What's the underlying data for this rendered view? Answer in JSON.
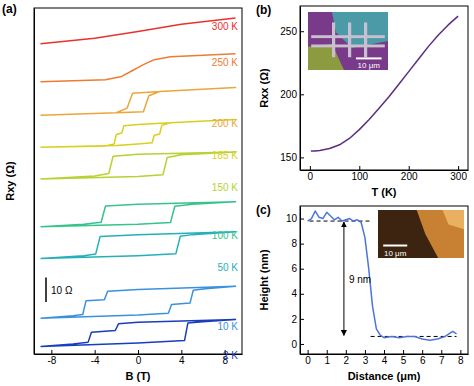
{
  "chart_data": [
    {
      "type": "line",
      "panel_label": "(a)",
      "x_label": "B (T)",
      "y_label": "Rxy (Ω)",
      "xlim": [
        -9.6,
        9.6
      ],
      "xticks": [
        -8,
        -4,
        0,
        4,
        8
      ],
      "ylim": [
        0,
        140
      ],
      "tick_labels": "x",
      "scale_bar": {
        "value": 10,
        "label": "10 Ω"
      },
      "series": [
        {
          "name": "300 K",
          "color": "#e8322e",
          "x": [
            -9,
            -4,
            0,
            4,
            9
          ],
          "values": [
            125.5,
            127.8,
            130.5,
            133.4,
            136.0
          ]
        },
        {
          "name": "250 K",
          "color": "#ef7a30",
          "x": [
            -9,
            -3,
            -1.5,
            -0.5,
            0,
            0.5,
            1.5,
            3,
            9
          ],
          "values": [
            110.2,
            111.0,
            112.3,
            114.7,
            115.9,
            117.1,
            119.1,
            120.3,
            121.5
          ]
        },
        {
          "name": "200 K",
          "color": "#eaa63a",
          "x": [
            -9,
            -2,
            0.5,
            1.0,
            2,
            9,
            2,
            -0.5,
            -1.0,
            -2,
            -9
          ],
          "values": [
            96.6,
            97.6,
            98.0,
            104.5,
            106.2,
            107.8,
            106.2,
            105.5,
            99.5,
            97.6,
            96.6
          ]
        },
        {
          "name": "185 K",
          "color": "#d8cf1e",
          "x": [
            -9,
            -2,
            0,
            1.3,
            1.5,
            2.0,
            2.2,
            3,
            9,
            3,
            0,
            -1.3,
            -1.5,
            -2.0,
            -2.2,
            -3,
            -9
          ],
          "values": [
            83.7,
            84.4,
            85.0,
            85.5,
            88.5,
            89.0,
            92.5,
            93.6,
            94.9,
            93.6,
            92.9,
            92.4,
            89.4,
            88.8,
            85.0,
            84.2,
            83.7
          ]
        },
        {
          "name": "150 K",
          "color": "#b5d332",
          "x": [
            -9,
            0,
            2.3,
            2.7,
            4,
            9,
            0,
            -2.3,
            -2.7,
            -4,
            -9
          ],
          "values": [
            70.8,
            71.8,
            72.5,
            79.5,
            80.6,
            81.7,
            80.8,
            80.0,
            73.0,
            72.0,
            70.8
          ]
        },
        {
          "name": "100 K",
          "color": "#36c48c",
          "x": [
            -9,
            0,
            3.0,
            3.4,
            5,
            9,
            0,
            -3.0,
            -3.4,
            -5,
            -9
          ],
          "values": [
            51.5,
            52.5,
            53.2,
            59.8,
            60.6,
            61.6,
            60.6,
            59.9,
            53.3,
            52.5,
            51.5
          ]
        },
        {
          "name": "50 K",
          "color": "#24b0b8",
          "x": [
            -9,
            0,
            3.5,
            3.9,
            5,
            9,
            0,
            -3.5,
            -3.9,
            -5,
            -9
          ],
          "values": [
            38.6,
            39.8,
            40.6,
            47.6,
            48.3,
            49.5,
            48.3,
            47.5,
            40.5,
            39.8,
            38.6
          ]
        },
        {
          "name": "10 K",
          "color": "#3a92de",
          "x": [
            -9,
            0,
            2.8,
            3.1,
            4.8,
            5.1,
            6,
            9,
            0,
            -2.8,
            -3.1,
            -4.8,
            -5.1,
            -6,
            -9
          ],
          "values": [
            14.5,
            15.8,
            16.5,
            20.0,
            20.6,
            25.8,
            26.3,
            27.4,
            26.1,
            25.4,
            22.0,
            21.5,
            16.0,
            15.5,
            14.5
          ]
        },
        {
          "name": "2 K",
          "color": "#1a3dbf",
          "x": [
            -9,
            0,
            4.3,
            4.6,
            6,
            9,
            0,
            -1.8,
            -2.1,
            -4.3,
            -4.6,
            -6,
            -9
          ],
          "values": [
            3.0,
            4.5,
            5.5,
            12.5,
            13.0,
            14.0,
            12.8,
            12.2,
            9.5,
            8.8,
            4.8,
            4.0,
            3.0
          ]
        }
      ]
    },
    {
      "type": "line",
      "panel_label": "(b)",
      "x_label": "T (K)",
      "y_label": "Rxx (Ω)",
      "xlim": [
        -20,
        320
      ],
      "xticks": [
        0,
        100,
        200,
        300
      ],
      "ylim": [
        140,
        270
      ],
      "yticks": [
        150,
        200,
        250
      ],
      "x": [
        2,
        10,
        20,
        40,
        60,
        80,
        100,
        120,
        140,
        160,
        180,
        200,
        220,
        240,
        260,
        280,
        300
      ],
      "series": [
        {
          "color": "#5a2d82",
          "values": [
            155,
            155,
            155.5,
            157,
            160,
            165,
            172,
            180,
            189,
            198,
            208,
            218,
            228,
            238,
            247,
            255,
            262
          ]
        }
      ],
      "inset": {
        "scale_label": "10 μm"
      }
    },
    {
      "type": "line",
      "panel_label": "(c)",
      "x_label": "Distance (μm)",
      "y_label": "Height (nm)",
      "xlim": [
        -0.4,
        8.4
      ],
      "xticks": [
        0,
        1,
        2,
        3,
        4,
        5,
        6,
        7,
        8
      ],
      "ylim": [
        -0.8,
        11
      ],
      "yticks": [
        0,
        2,
        4,
        6,
        8,
        10
      ],
      "x": [
        0,
        0.2,
        0.4,
        0.6,
        0.8,
        1.0,
        1.2,
        1.4,
        1.6,
        1.8,
        2.0,
        2.2,
        2.4,
        2.6,
        2.8,
        3.0,
        3.2,
        3.4,
        3.6,
        3.8,
        4.0,
        4.4,
        4.8,
        5.2,
        5.6,
        6.0,
        6.4,
        6.8,
        7.2,
        7.6,
        7.8
      ],
      "series": [
        {
          "color": "#4f74d9",
          "values": [
            9.8,
            10.0,
            10.6,
            10.1,
            10.0,
            10.5,
            10.2,
            9.9,
            10.1,
            9.8,
            9.9,
            10.0,
            9.8,
            9.9,
            9.7,
            8.5,
            6.0,
            3.0,
            1.2,
            0.7,
            0.5,
            0.6,
            0.5,
            0.6,
            0.6,
            0.4,
            0.3,
            0.4,
            0.6,
            1.0,
            0.8
          ]
        }
      ],
      "reference_lines": [
        {
          "value": 9.8,
          "x": [
            0.1,
            3.3
          ]
        },
        {
          "value": 0.6,
          "x": [
            3.3,
            7.8
          ]
        }
      ],
      "annotation": {
        "text": "9 nm",
        "x": 1.9
      },
      "inset": {
        "scale_label": "10 μm"
      }
    }
  ]
}
